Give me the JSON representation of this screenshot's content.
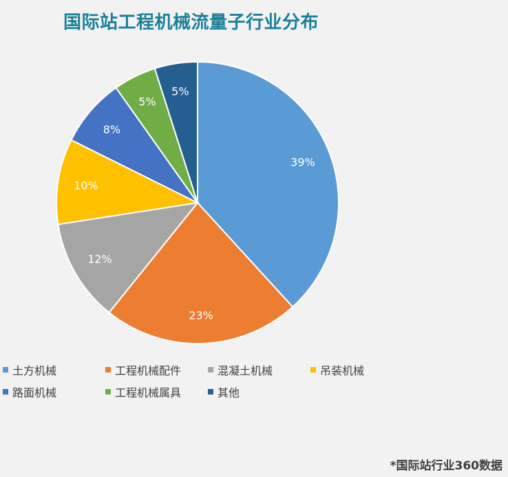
{
  "chart_data": {
    "type": "pie",
    "title": "国际站工程机械流量子行业分布",
    "categories": [
      "土方机械",
      "工程机械配件",
      "混凝土机械",
      "吊装机械",
      "路面机械",
      "工程机械属具",
      "其他"
    ],
    "values": [
      39,
      23,
      12,
      10,
      8,
      5,
      5
    ],
    "labels": [
      "39%",
      "23%",
      "12%",
      "10%",
      "8%",
      "5%",
      "5%"
    ],
    "colors": [
      "#5b9bd5",
      "#ed7d31",
      "#a5a5a5",
      "#ffc000",
      "#4472c4",
      "#70ad47",
      "#255e91"
    ],
    "start_angle": "12 o'clock",
    "direction": "clockwise",
    "legend_position": "bottom"
  },
  "footer": {
    "source": "*国际站行业360数据"
  }
}
